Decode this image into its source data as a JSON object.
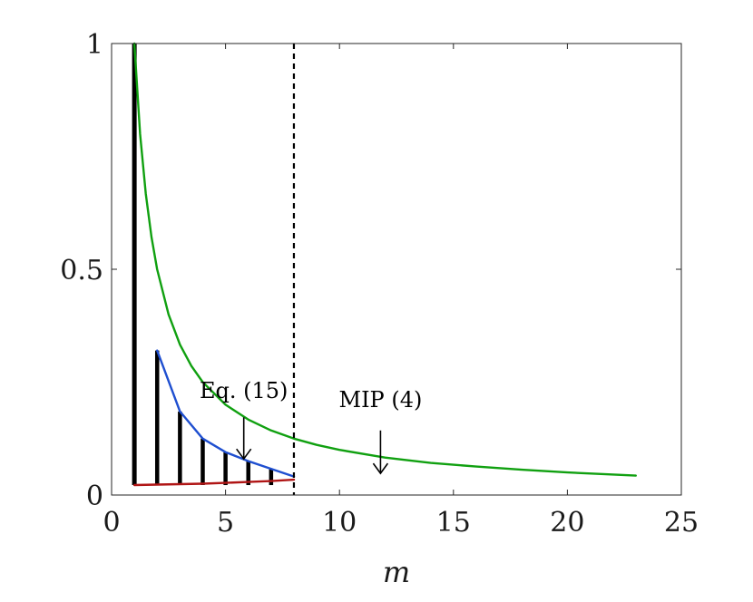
{
  "chart_data": {
    "type": "line",
    "xlabel": "m",
    "ylabel": "",
    "xlim": [
      0,
      25
    ],
    "ylim": [
      0,
      1
    ],
    "x_ticks": [
      0,
      5,
      10,
      15,
      20,
      25
    ],
    "x_tick_labels": [
      "0",
      "5",
      "10",
      "15",
      "20",
      "25"
    ],
    "y_ticks": [
      0,
      0.5,
      1
    ],
    "y_tick_labels": [
      "0",
      "0.5",
      "1"
    ],
    "grid": false,
    "stems": {
      "x": [
        1,
        2,
        3,
        4,
        5,
        6,
        7
      ],
      "y": [
        1.0,
        0.32,
        0.185,
        0.125,
        0.095,
        0.075,
        0.058
      ],
      "baseline": 0.022,
      "color": "#000000"
    },
    "series": [
      {
        "color": "#10a010",
        "x": [
          1,
          1.25,
          1.5,
          1.75,
          2,
          2.5,
          3,
          3.5,
          4,
          5,
          6,
          7,
          8,
          9,
          10,
          12,
          14,
          16,
          18,
          20,
          23
        ],
        "y": [
          1.0,
          0.8,
          0.667,
          0.571,
          0.5,
          0.4,
          0.333,
          0.286,
          0.25,
          0.2,
          0.167,
          0.143,
          0.125,
          0.111,
          0.1,
          0.083,
          0.071,
          0.063,
          0.056,
          0.05,
          0.043
        ]
      },
      {
        "color": "#1f4fd0",
        "x": [
          2,
          3,
          4,
          5,
          6,
          7,
          8
        ],
        "y": [
          0.32,
          0.185,
          0.125,
          0.095,
          0.075,
          0.058,
          0.041
        ]
      },
      {
        "color": "#b01515",
        "x": [
          1,
          2,
          3,
          4,
          5,
          6,
          7,
          8
        ],
        "y": [
          0.022,
          0.023,
          0.024,
          0.025,
          0.027,
          0.029,
          0.031,
          0.034
        ]
      }
    ],
    "vline": {
      "x": 8,
      "style": "dashed",
      "color": "#000000"
    },
    "annotations": [
      {
        "text": "Eq. (15)",
        "x": 5.8,
        "y": 0.215,
        "arrow_from": [
          5.8,
          0.172
        ],
        "arrow_to": [
          5.8,
          0.08
        ]
      },
      {
        "text": "MIP (4)",
        "x": 11.8,
        "y": 0.195,
        "arrow_from": [
          11.8,
          0.143
        ],
        "arrow_to": [
          11.8,
          0.048
        ]
      }
    ]
  }
}
